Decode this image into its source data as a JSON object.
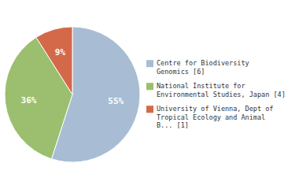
{
  "chart_data": {
    "type": "pie",
    "categories": [
      "Centre for Biodiversity\nGenomics [6]",
      "National Institute for\nEnvironmental Studies, Japan [4]",
      "University of Vienna, Dept of\nTropical Ecology and Animal\nB... [1]"
    ],
    "values": [
      55,
      36,
      9
    ],
    "value_labels": [
      "55%",
      "36%",
      "9%"
    ],
    "colors": [
      "#a8bdd4",
      "#9bbf6e",
      "#d4694a"
    ],
    "data_labels": true,
    "legend": "right"
  }
}
